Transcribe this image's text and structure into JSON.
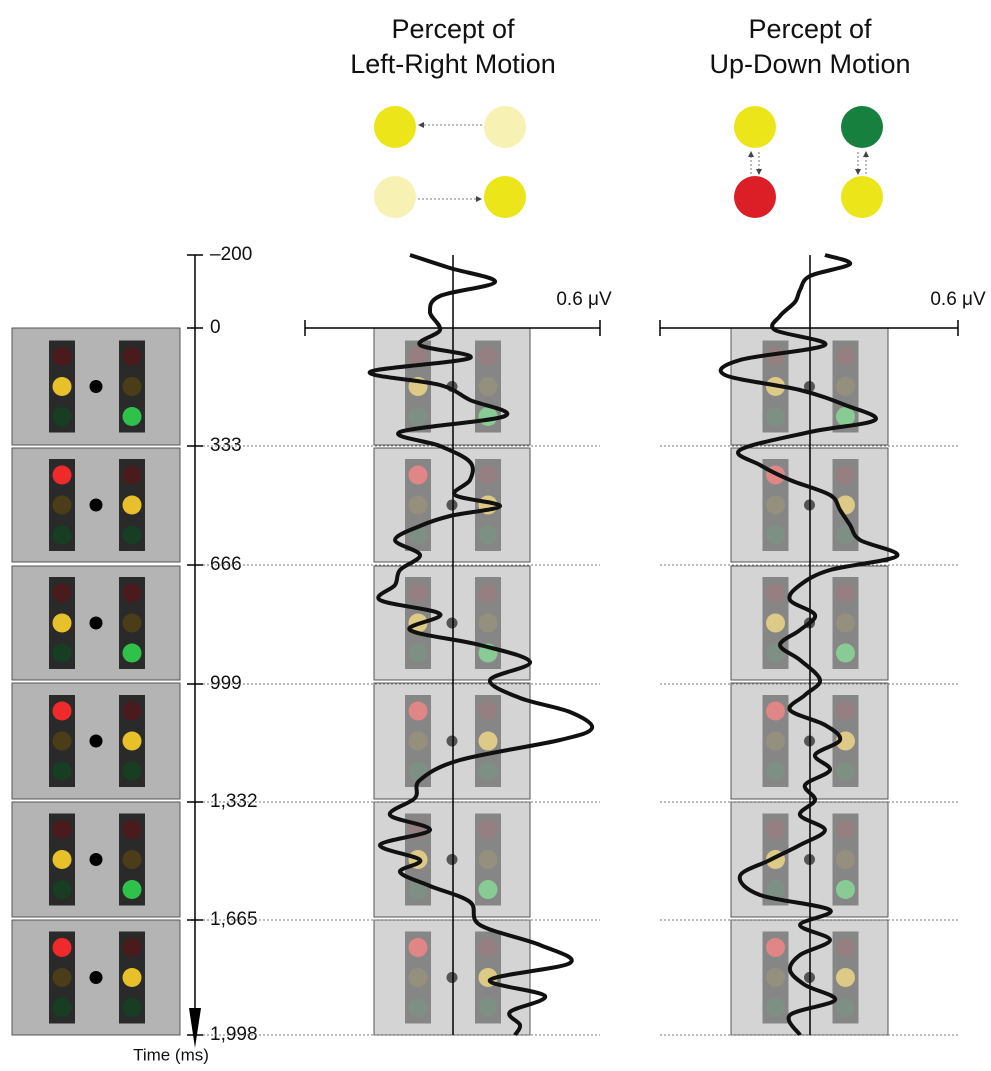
{
  "panels": [
    {
      "title": [
        "Percept of",
        "Left-Right Motion"
      ],
      "scale_label": "0.6 μV"
    },
    {
      "title": [
        "Percept of",
        "Up-Down  Motion"
      ],
      "scale_label": "0.6 μV"
    }
  ],
  "time_axis": {
    "label": "Time (ms)",
    "ticks": [
      "–200",
      "0",
      "333",
      "666",
      "999",
      "1,332",
      "1,665",
      "1,998"
    ]
  }
}
